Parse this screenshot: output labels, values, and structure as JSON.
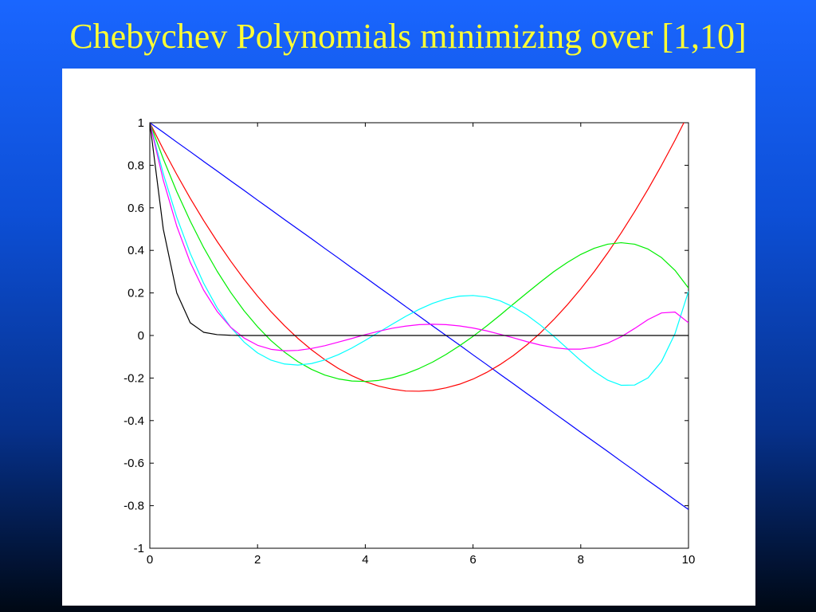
{
  "slide": {
    "title": "Chebychev Polynomials minimizing over [1,10]"
  },
  "chart_data": {
    "type": "line",
    "title": "",
    "xlabel": "",
    "ylabel": "",
    "xlim": [
      0,
      10
    ],
    "ylim": [
      -1,
      1
    ],
    "xticks": [
      0,
      2,
      4,
      6,
      8,
      10
    ],
    "yticks": [
      -1,
      -0.8,
      -0.6,
      -0.4,
      -0.2,
      0,
      0.2,
      0.4,
      0.6,
      0.8,
      1
    ],
    "xtick_labels": [
      "0",
      "2",
      "4",
      "6",
      "8",
      "10"
    ],
    "ytick_labels": [
      "-1",
      "-0.8",
      "-0.6",
      "-0.4",
      "-0.2",
      "0",
      "0.2",
      "0.4",
      "0.6",
      "0.8",
      "1"
    ],
    "grid": false,
    "legend": "none",
    "x": [
      0,
      0.25,
      0.5,
      0.75,
      1,
      1.25,
      1.5,
      1.75,
      2,
      2.25,
      2.5,
      2.75,
      3,
      3.25,
      3.5,
      3.75,
      4,
      4.25,
      4.5,
      4.75,
      5,
      5.25,
      5.5,
      5.75,
      6,
      6.25,
      6.5,
      6.75,
      7,
      7.25,
      7.5,
      7.75,
      8,
      8.25,
      8.5,
      8.75,
      9,
      9.25,
      9.5,
      9.75,
      10
    ],
    "series": [
      {
        "color": "#0000ff",
        "values": [
          1,
          0.955,
          0.909,
          0.864,
          0.818,
          0.773,
          0.727,
          0.682,
          0.636,
          0.591,
          0.545,
          0.5,
          0.455,
          0.409,
          0.364,
          0.318,
          0.273,
          0.227,
          0.182,
          0.136,
          0.091,
          0.045,
          0,
          -0.045,
          -0.091,
          -0.136,
          -0.182,
          -0.227,
          -0.273,
          -0.318,
          -0.364,
          -0.409,
          -0.455,
          -0.5,
          -0.545,
          -0.591,
          -0.636,
          -0.682,
          -0.727,
          -0.773,
          -0.818
        ]
      },
      {
        "color": "#ff0000",
        "values": [
          1,
          0.875,
          0.757,
          0.645,
          0.54,
          0.442,
          0.35,
          0.264,
          0.185,
          0.112,
          0.046,
          -0.014,
          -0.067,
          -0.114,
          -0.155,
          -0.189,
          -0.217,
          -0.238,
          -0.252,
          -0.261,
          -0.262,
          -0.258,
          -0.246,
          -0.229,
          -0.205,
          -0.174,
          -0.137,
          -0.094,
          -0.044,
          0.012,
          0.075,
          0.144,
          0.219,
          0.3,
          0.388,
          0.482,
          0.582,
          0.688,
          0.8,
          0.918,
          1.043
        ]
      },
      {
        "color": "#00ee00",
        "values": [
          1,
          0.83,
          0.676,
          0.538,
          0.413,
          0.302,
          0.203,
          0.116,
          0.041,
          -0.024,
          -0.078,
          -0.123,
          -0.159,
          -0.186,
          -0.204,
          -0.214,
          -0.216,
          -0.211,
          -0.199,
          -0.18,
          -0.155,
          -0.125,
          -0.089,
          -0.048,
          -0.004,
          0.044,
          0.095,
          0.148,
          0.2,
          0.251,
          0.3,
          0.343,
          0.381,
          0.41,
          0.429,
          0.436,
          0.429,
          0.406,
          0.366,
          0.306,
          0.223
        ]
      },
      {
        "color": "#00ffff",
        "values": [
          1,
          0.76,
          0.556,
          0.386,
          0.245,
          0.13,
          0.039,
          -0.031,
          -0.082,
          -0.116,
          -0.134,
          -0.139,
          -0.132,
          -0.115,
          -0.09,
          -0.059,
          -0.023,
          0.015,
          0.053,
          0.09,
          0.123,
          0.151,
          0.172,
          0.185,
          0.188,
          0.181,
          0.163,
          0.134,
          0.096,
          0.049,
          -0.004,
          -0.061,
          -0.118,
          -0.169,
          -0.21,
          -0.234,
          -0.233,
          -0.199,
          -0.122,
          0.009,
          0.208
        ]
      },
      {
        "color": "#ff00ff",
        "values": [
          1,
          0.73,
          0.514,
          0.344,
          0.213,
          0.113,
          0.039,
          -0.012,
          -0.046,
          -0.065,
          -0.072,
          -0.07,
          -0.061,
          -0.048,
          -0.031,
          -0.014,
          0.004,
          0.02,
          0.034,
          0.044,
          0.051,
          0.053,
          0.051,
          0.045,
          0.035,
          0.022,
          0.006,
          -0.011,
          -0.029,
          -0.045,
          -0.057,
          -0.064,
          -0.064,
          -0.055,
          -0.036,
          -0.006,
          0.033,
          0.075,
          0.106,
          0.11,
          0.06
        ]
      },
      {
        "color": "#000000",
        "values": [
          1,
          0.5,
          0.2,
          0.06,
          0.015,
          0.004,
          0.001,
          0,
          0,
          0,
          0,
          0,
          0,
          0,
          0,
          0,
          0,
          0,
          0,
          0,
          0,
          0,
          0,
          0,
          0,
          0,
          0,
          0,
          0,
          0,
          0,
          0,
          0,
          0,
          0,
          0,
          0,
          0,
          0,
          0,
          0
        ]
      }
    ]
  }
}
